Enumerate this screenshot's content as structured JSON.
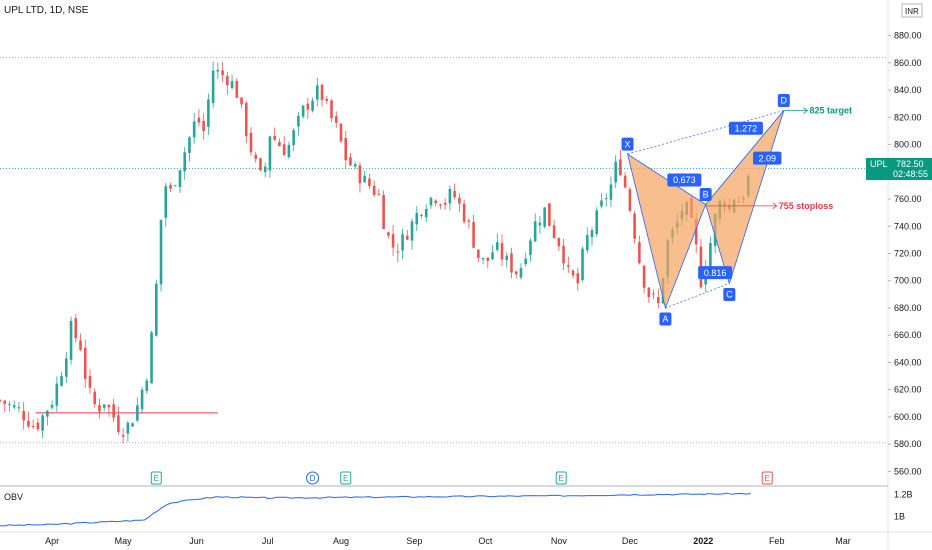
{
  "header": {
    "title": "UPL LTD, 1D, NSE",
    "currency": "INR"
  },
  "indicator": {
    "name": "OBV",
    "y_ticks": [
      {
        "v": 1.2,
        "label": "1.2B"
      },
      {
        "v": 1.0,
        "label": "1B"
      }
    ]
  },
  "price_label": {
    "symbol": "UPL",
    "price": "782.50",
    "countdown": "02:48:55"
  },
  "event_markers": [
    {
      "label": "E",
      "date": "2021-05-15",
      "style": "green"
    },
    {
      "label": "D",
      "date": "2021-07-20",
      "style": "blue"
    },
    {
      "label": "E",
      "date": "2021-08-03",
      "style": "green"
    },
    {
      "label": "E",
      "date": "2021-11-02",
      "style": "green"
    },
    {
      "label": "E",
      "date": "2022-01-28",
      "style": "red"
    }
  ],
  "colors": {
    "up": "#26a69a",
    "down": "#ef5350",
    "pattern_fill": "#f7a35c",
    "pattern_line": "#2962ff",
    "badge": "#2962ff",
    "target": "#089981",
    "stoploss": "#f23645",
    "obv": "#2962ff"
  },
  "chart_data": {
    "type": "candlestick",
    "title": "UPL LTD, 1D, NSE",
    "ylim": [
      550,
      890
    ],
    "xlim": [
      "2021-03-10",
      "2022-03-20"
    ],
    "y_ticks": [
      560,
      580,
      600,
      620,
      640,
      660,
      680,
      700,
      720,
      740,
      760,
      780,
      800,
      820,
      840,
      860,
      880
    ],
    "x_ticks": [
      {
        "label": "Apr",
        "date": "2021-04-01"
      },
      {
        "label": "May",
        "date": "2021-05-01"
      },
      {
        "label": "Jun",
        "date": "2021-06-01"
      },
      {
        "label": "Jul",
        "date": "2021-07-01"
      },
      {
        "label": "Aug",
        "date": "2021-08-01"
      },
      {
        "label": "Sep",
        "date": "2021-09-01"
      },
      {
        "label": "Oct",
        "date": "2021-10-01"
      },
      {
        "label": "Nov",
        "date": "2021-11-01"
      },
      {
        "label": "Dec",
        "date": "2021-12-01"
      },
      {
        "label": "2022",
        "date": "2022-01-01"
      },
      {
        "label": "Feb",
        "date": "2022-02-01"
      },
      {
        "label": "Mar",
        "date": "2022-03-01"
      }
    ],
    "close_path": [
      [
        "2021-03-10",
        612
      ],
      [
        "2021-03-18",
        605
      ],
      [
        "2021-03-25",
        592
      ],
      [
        "2021-04-01",
        612
      ],
      [
        "2021-04-06",
        640
      ],
      [
        "2021-04-09",
        665
      ],
      [
        "2021-04-13",
        652
      ],
      [
        "2021-04-16",
        620
      ],
      [
        "2021-04-20",
        605
      ],
      [
        "2021-04-23",
        612
      ],
      [
        "2021-04-27",
        600
      ],
      [
        "2021-04-30",
        590
      ],
      [
        "2021-05-04",
        595
      ],
      [
        "2021-05-07",
        608
      ],
      [
        "2021-05-11",
        632
      ],
      [
        "2021-05-14",
        672
      ],
      [
        "2021-05-17",
        745
      ],
      [
        "2021-05-19",
        770
      ],
      [
        "2021-05-21",
        765
      ],
      [
        "2021-05-25",
        785
      ],
      [
        "2021-05-28",
        800
      ],
      [
        "2021-06-01",
        820
      ],
      [
        "2021-06-04",
        810
      ],
      [
        "2021-06-08",
        855
      ],
      [
        "2021-06-11",
        852
      ],
      [
        "2021-06-15",
        848
      ],
      [
        "2021-06-18",
        838
      ],
      [
        "2021-06-22",
        810
      ],
      [
        "2021-06-25",
        790
      ],
      [
        "2021-06-29",
        772
      ],
      [
        "2021-07-02",
        808
      ],
      [
        "2021-07-06",
        800
      ],
      [
        "2021-07-09",
        795
      ],
      [
        "2021-07-13",
        812
      ],
      [
        "2021-07-16",
        825
      ],
      [
        "2021-07-20",
        835
      ],
      [
        "2021-07-23",
        840
      ],
      [
        "2021-07-27",
        822
      ],
      [
        "2021-07-30",
        812
      ],
      [
        "2021-08-03",
        790
      ],
      [
        "2021-08-06",
        783
      ],
      [
        "2021-08-10",
        775
      ],
      [
        "2021-08-13",
        770
      ],
      [
        "2021-08-17",
        762
      ],
      [
        "2021-08-20",
        735
      ],
      [
        "2021-08-24",
        722
      ],
      [
        "2021-08-27",
        730
      ],
      [
        "2021-08-31",
        742
      ],
      [
        "2021-09-03",
        752
      ],
      [
        "2021-09-07",
        760
      ],
      [
        "2021-09-10",
        762
      ],
      [
        "2021-09-14",
        758
      ],
      [
        "2021-09-17",
        765
      ],
      [
        "2021-09-21",
        752
      ],
      [
        "2021-09-24",
        740
      ],
      [
        "2021-09-28",
        718
      ],
      [
        "2021-10-01",
        712
      ],
      [
        "2021-10-05",
        725
      ],
      [
        "2021-10-08",
        718
      ],
      [
        "2021-10-12",
        710
      ],
      [
        "2021-10-15",
        705
      ],
      [
        "2021-10-19",
        728
      ],
      [
        "2021-10-22",
        742
      ],
      [
        "2021-10-26",
        752
      ],
      [
        "2021-10-29",
        738
      ],
      [
        "2021-11-02",
        725
      ],
      [
        "2021-11-05",
        705
      ],
      [
        "2021-11-09",
        698
      ],
      [
        "2021-11-12",
        728
      ],
      [
        "2021-11-16",
        742
      ],
      [
        "2021-11-19",
        755
      ],
      [
        "2021-11-23",
        770
      ],
      [
        "2021-11-26",
        790
      ],
      [
        "2021-11-30",
        762
      ],
      [
        "2021-12-03",
        735
      ],
      [
        "2021-12-06",
        705
      ],
      [
        "2021-12-09",
        690
      ],
      [
        "2021-12-13",
        682
      ],
      [
        "2021-12-15",
        705
      ],
      [
        "2021-12-17",
        728
      ],
      [
        "2021-12-21",
        742
      ],
      [
        "2021-12-24",
        758
      ],
      [
        "2021-12-28",
        735
      ],
      [
        "2021-12-31",
        700
      ],
      [
        "2022-01-04",
        728
      ],
      [
        "2022-01-07",
        755
      ],
      [
        "2022-01-10",
        760
      ],
      [
        "2022-01-12",
        752
      ],
      [
        "2022-01-14",
        762
      ],
      [
        "2022-01-17",
        758
      ],
      [
        "2022-01-19",
        768
      ],
      [
        "2022-01-21",
        782.5
      ]
    ],
    "candle_step_days": 2,
    "harmonic_pattern": {
      "points": [
        {
          "label": "X",
          "date": "2021-11-30",
          "price": 793
        },
        {
          "label": "A",
          "date": "2021-12-16",
          "price": 680
        },
        {
          "label": "B",
          "date": "2022-01-02",
          "price": 756
        },
        {
          "label": "C",
          "date": "2022-01-12",
          "price": 698
        },
        {
          "label": "D",
          "date": "2022-02-04",
          "price": 825
        }
      ],
      "ratios": [
        {
          "label": "0.673",
          "date": "2021-12-24",
          "price": 774
        },
        {
          "label": "0.816",
          "date": "2022-01-06",
          "price": 706
        },
        {
          "label": "1.272",
          "date": "2022-01-19",
          "price": 812
        },
        {
          "label": "2.09",
          "date": "2022-01-28",
          "price": 790
        }
      ]
    },
    "annotations": [
      {
        "text": "825 target",
        "price": 825,
        "date_from": "2022-02-04",
        "date_to": "2022-02-14",
        "color": "target"
      },
      {
        "text": "755 stoploss",
        "price": 755,
        "date_from": "2022-01-02",
        "date_to": "2022-02-01",
        "color": "stoploss"
      }
    ],
    "horizontal_levels": [
      {
        "price": 864,
        "style": "dotted"
      },
      {
        "price": 782.5,
        "style": "dotted"
      },
      {
        "price": 581,
        "style": "dotted"
      }
    ],
    "support_line": {
      "price": 603,
      "date_from": "2021-03-25",
      "date_to": "2021-06-10"
    },
    "obv": [
      [
        "2021-03-10",
        0.92
      ],
      [
        "2021-04-01",
        0.93
      ],
      [
        "2021-04-20",
        0.95
      ],
      [
        "2021-05-10",
        0.97
      ],
      [
        "2021-05-15",
        1.05
      ],
      [
        "2021-05-20",
        1.12
      ],
      [
        "2021-06-01",
        1.16
      ],
      [
        "2021-06-10",
        1.18
      ],
      [
        "2021-07-01",
        1.17
      ],
      [
        "2021-08-01",
        1.175
      ],
      [
        "2021-09-01",
        1.18
      ],
      [
        "2021-10-01",
        1.185
      ],
      [
        "2021-11-01",
        1.19
      ],
      [
        "2021-12-01",
        1.2
      ],
      [
        "2022-01-01",
        1.205
      ],
      [
        "2022-01-21",
        1.21
      ]
    ]
  }
}
